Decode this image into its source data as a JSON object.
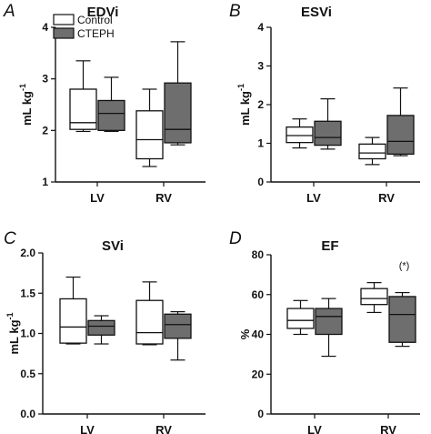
{
  "legend": {
    "items": [
      {
        "label": "Control",
        "color": "#ffffff"
      },
      {
        "label": "CTEPH",
        "color": "#6e6e6e"
      }
    ]
  },
  "chart_data": [
    {
      "panel": "A",
      "type": "box",
      "title": "EDVi",
      "ylabel": "mL kg",
      "ylabel_sup": "-1",
      "ylim": [
        1,
        4
      ],
      "yticks": [
        1,
        2,
        3,
        4
      ],
      "categories": [
        "LV",
        "RV"
      ],
      "series": [
        {
          "name": "Control",
          "color": "#ffffff",
          "boxes": [
            {
              "min": 1.98,
              "q1": 2.02,
              "median": 2.15,
              "q3": 2.8,
              "max": 3.35
            },
            {
              "min": 1.3,
              "q1": 1.45,
              "median": 1.82,
              "q3": 2.38,
              "max": 2.8
            }
          ]
        },
        {
          "name": "CTEPH",
          "color": "#6e6e6e",
          "boxes": [
            {
              "min": 1.98,
              "q1": 2.0,
              "median": 2.33,
              "q3": 2.58,
              "max": 3.03
            },
            {
              "min": 1.72,
              "q1": 1.76,
              "median": 2.02,
              "q3": 2.92,
              "max": 3.72
            }
          ]
        }
      ]
    },
    {
      "panel": "B",
      "type": "box",
      "title": "ESVi",
      "ylabel": "mL kg",
      "ylabel_sup": "-1",
      "ylim": [
        0,
        4
      ],
      "yticks": [
        0,
        1,
        2,
        3,
        4
      ],
      "categories": [
        "LV",
        "RV"
      ],
      "series": [
        {
          "name": "Control",
          "color": "#ffffff",
          "boxes": [
            {
              "min": 0.88,
              "q1": 1.02,
              "median": 1.2,
              "q3": 1.42,
              "max": 1.63
            },
            {
              "min": 0.45,
              "q1": 0.6,
              "median": 0.75,
              "q3": 0.98,
              "max": 1.15
            }
          ]
        },
        {
          "name": "CTEPH",
          "color": "#6e6e6e",
          "boxes": [
            {
              "min": 0.85,
              "q1": 0.95,
              "median": 1.15,
              "q3": 1.57,
              "max": 2.15
            },
            {
              "min": 0.68,
              "q1": 0.72,
              "median": 1.05,
              "q3": 1.72,
              "max": 2.43
            }
          ]
        }
      ]
    },
    {
      "panel": "C",
      "type": "box",
      "title": "SVi",
      "ylabel": "mL kg",
      "ylabel_sup": "-1",
      "ylim": [
        0,
        2
      ],
      "yticks": [
        "0.0",
        "0.5",
        "1.0",
        "1.5",
        "2.0"
      ],
      "categories": [
        "LV",
        "RV"
      ],
      "series": [
        {
          "name": "Control",
          "color": "#ffffff",
          "boxes": [
            {
              "min": 0.87,
              "q1": 0.88,
              "median": 1.08,
              "q3": 1.43,
              "max": 1.7
            },
            {
              "min": 0.86,
              "q1": 0.87,
              "median": 1.01,
              "q3": 1.41,
              "max": 1.64
            }
          ]
        },
        {
          "name": "CTEPH",
          "color": "#6e6e6e",
          "boxes": [
            {
              "min": 0.87,
              "q1": 0.98,
              "median": 1.09,
              "q3": 1.16,
              "max": 1.22
            },
            {
              "min": 0.67,
              "q1": 0.94,
              "median": 1.11,
              "q3": 1.24,
              "max": 1.27
            }
          ]
        }
      ]
    },
    {
      "panel": "D",
      "type": "box",
      "title": "EF",
      "ylabel": "%",
      "ylabel_sup": "",
      "ylim": [
        0,
        80
      ],
      "yticks": [
        0,
        20,
        40,
        60,
        80
      ],
      "categories": [
        "LV",
        "RV"
      ],
      "annotations": [
        {
          "text": "(*)",
          "category": "RV",
          "value": 73
        }
      ],
      "series": [
        {
          "name": "Control",
          "color": "#ffffff",
          "boxes": [
            {
              "min": 40,
              "q1": 43,
              "median": 47,
              "q3": 53,
              "max": 57
            },
            {
              "min": 51,
              "q1": 55,
              "median": 58,
              "q3": 63,
              "max": 66
            }
          ]
        },
        {
          "name": "CTEPH",
          "color": "#6e6e6e",
          "boxes": [
            {
              "min": 29,
              "q1": 40,
              "median": 49,
              "q3": 53,
              "max": 58
            },
            {
              "min": 34,
              "q1": 36,
              "median": 50,
              "q3": 59,
              "max": 61
            }
          ]
        }
      ]
    }
  ]
}
